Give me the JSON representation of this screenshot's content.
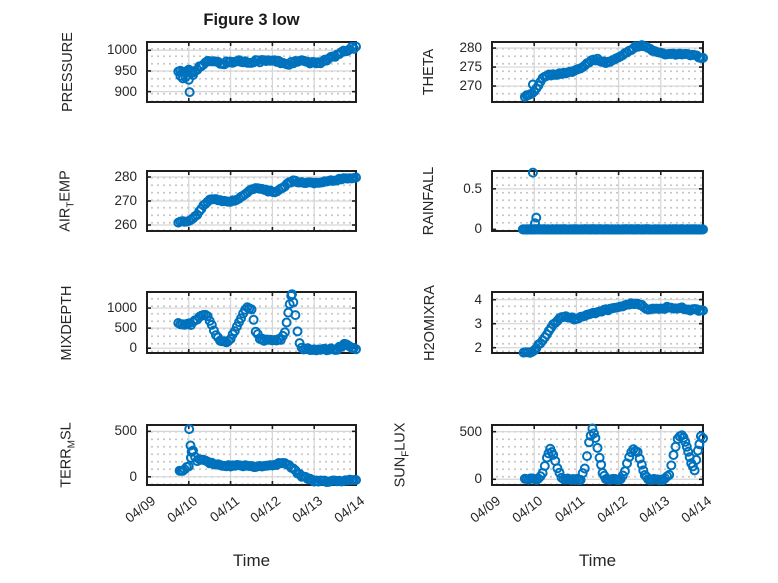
{
  "figure": {
    "title": "Figure 3 low",
    "time_label": "Time"
  },
  "x_axis": {
    "label": "Time",
    "tick_labels": [
      "04/09",
      "04/10",
      "04/11",
      "04/12",
      "04/13",
      "04/14"
    ],
    "range_days": [
      0,
      5
    ]
  },
  "style": {
    "marker_color": "#0072BD",
    "axis_color": "#1f1f1f",
    "grid_color": "#d6d6d6",
    "minor_dot_color": "#c7c7c7",
    "text_color": "#262626",
    "background": "#ffffff"
  },
  "chart_data": [
    {
      "type": "scatter",
      "name": "pressure",
      "ylabel": "PRESSURE",
      "ylabel_parts": [
        [
          "text",
          "PRESSURE"
        ]
      ],
      "ylim": [
        875,
        1020
      ],
      "yticks": [
        {
          "v": 900,
          "label": "900"
        },
        {
          "v": 950,
          "label": "950"
        },
        {
          "v": 1000,
          "label": "1000"
        }
      ],
      "step": 0.045,
      "jitter": 3.5,
      "trend": [
        [
          0.75,
          950
        ],
        [
          0.9,
          945
        ],
        [
          1.0,
          953
        ],
        [
          1.1,
          948
        ],
        [
          1.2,
          956
        ],
        [
          1.35,
          966
        ],
        [
          1.5,
          974
        ],
        [
          1.65,
          971
        ],
        [
          1.8,
          968
        ],
        [
          2.0,
          972
        ],
        [
          2.2,
          974
        ],
        [
          2.4,
          971
        ],
        [
          2.6,
          975
        ],
        [
          2.8,
          974
        ],
        [
          3.0,
          975
        ],
        [
          3.2,
          971
        ],
        [
          3.35,
          967
        ],
        [
          3.5,
          970
        ],
        [
          3.65,
          974
        ],
        [
          3.8,
          972
        ],
        [
          4.0,
          968
        ],
        [
          4.15,
          972
        ],
        [
          4.3,
          978
        ],
        [
          4.5,
          985
        ],
        [
          4.7,
          996
        ],
        [
          4.85,
          1003
        ],
        [
          5.0,
          1009
        ]
      ],
      "outliers": [
        [
          0.8,
          938
        ],
        [
          0.86,
          932
        ],
        [
          0.92,
          935
        ],
        [
          1.0,
          929
        ],
        [
          1.02,
          899
        ],
        [
          1.1,
          940
        ]
      ]
    },
    {
      "type": "scatter",
      "name": "theta",
      "ylabel": "THETA",
      "ylabel_parts": [
        [
          "text",
          "THETA"
        ]
      ],
      "ylim": [
        265.8,
        281.6
      ],
      "yticks": [
        {
          "v": 270,
          "label": "270"
        },
        {
          "v": 275,
          "label": "275"
        },
        {
          "v": 280,
          "label": "280"
        }
      ],
      "step": 0.045,
      "jitter": 0.2,
      "trend": [
        [
          0.78,
          267.3
        ],
        [
          0.9,
          267.7
        ],
        [
          1.0,
          268.4
        ],
        [
          1.1,
          270.0
        ],
        [
          1.2,
          272.0
        ],
        [
          1.3,
          272.8
        ],
        [
          1.45,
          273.0
        ],
        [
          1.6,
          273.2
        ],
        [
          1.75,
          273.5
        ],
        [
          1.9,
          273.8
        ],
        [
          2.05,
          274.5
        ],
        [
          2.2,
          275.5
        ],
        [
          2.35,
          276.8
        ],
        [
          2.5,
          277.0
        ],
        [
          2.6,
          276.5
        ],
        [
          2.7,
          276.2
        ],
        [
          2.8,
          276.5
        ],
        [
          3.0,
          277.5
        ],
        [
          3.2,
          279.0
        ],
        [
          3.4,
          280.3
        ],
        [
          3.55,
          280.8
        ],
        [
          3.7,
          280.0
        ],
        [
          3.85,
          279.1
        ],
        [
          4.0,
          278.6
        ],
        [
          4.2,
          278.3
        ],
        [
          4.4,
          278.5
        ],
        [
          4.6,
          278.3
        ],
        [
          4.8,
          278.0
        ],
        [
          5.0,
          277.4
        ]
      ],
      "outliers": [
        [
          0.97,
          270.4
        ]
      ]
    },
    {
      "type": "scatter",
      "name": "air_temp",
      "ylabel": "AIR_TEMP",
      "ylabel_parts": [
        [
          "text",
          "AIR"
        ],
        [
          "sub",
          "T"
        ],
        [
          "text",
          "EMP"
        ]
      ],
      "ylim": [
        257.5,
        282.5
      ],
      "yticks": [
        {
          "v": 260,
          "label": "260"
        },
        {
          "v": 270,
          "label": "270"
        },
        {
          "v": 280,
          "label": "280"
        }
      ],
      "step": 0.045,
      "jitter": 0.3,
      "trend": [
        [
          0.75,
          261.0
        ],
        [
          0.85,
          261.5
        ],
        [
          0.95,
          261.2
        ],
        [
          1.05,
          262.0
        ],
        [
          1.15,
          263.5
        ],
        [
          1.25,
          265.5
        ],
        [
          1.35,
          268.0
        ],
        [
          1.45,
          270.0
        ],
        [
          1.55,
          271.0
        ],
        [
          1.65,
          270.5
        ],
        [
          1.8,
          270.0
        ],
        [
          1.95,
          269.8
        ],
        [
          2.1,
          270.2
        ],
        [
          2.25,
          271.5
        ],
        [
          2.4,
          273.5
        ],
        [
          2.5,
          275.0
        ],
        [
          2.6,
          275.5
        ],
        [
          2.75,
          275.0
        ],
        [
          2.9,
          274.2
        ],
        [
          3.05,
          273.8
        ],
        [
          3.2,
          275.0
        ],
        [
          3.35,
          277.0
        ],
        [
          3.5,
          278.5
        ],
        [
          3.6,
          278.0
        ],
        [
          3.75,
          277.5
        ],
        [
          3.9,
          277.8
        ],
        [
          4.05,
          277.5
        ],
        [
          4.2,
          278.0
        ],
        [
          4.4,
          278.5
        ],
        [
          4.6,
          279.0
        ],
        [
          4.8,
          279.5
        ],
        [
          5.0,
          279.8
        ]
      ],
      "outliers": []
    },
    {
      "type": "scatter",
      "name": "rainfall",
      "ylabel": "RAINFALL",
      "ylabel_parts": [
        [
          "text",
          "RAINFALL"
        ]
      ],
      "ylim": [
        -0.02,
        0.72
      ],
      "yticks": [
        {
          "v": 0,
          "label": "0"
        },
        {
          "v": 0.5,
          "label": "0.5"
        }
      ],
      "step": 0.016,
      "jitter": 0.002,
      "trend": [
        [
          0.73,
          0
        ],
        [
          5.0,
          0
        ]
      ],
      "outliers": [
        [
          0.97,
          0.7
        ],
        [
          1.05,
          0.145
        ],
        [
          1.02,
          0.075
        ]
      ]
    },
    {
      "type": "scatter",
      "name": "mixdepth",
      "ylabel": "MIXDEPTH",
      "ylabel_parts": [
        [
          "text",
          "MIXDEPTH"
        ]
      ],
      "ylim": [
        -120,
        1400
      ],
      "yticks": [
        {
          "v": 0,
          "label": "0"
        },
        {
          "v": 500,
          "label": "500"
        },
        {
          "v": 1000,
          "label": "1000"
        }
      ],
      "step": 0.045,
      "jitter": 25,
      "trend": [
        [
          0.75,
          630
        ],
        [
          0.9,
          590
        ],
        [
          1.05,
          600
        ],
        [
          1.2,
          720
        ],
        [
          1.35,
          840
        ],
        [
          1.45,
          780
        ],
        [
          1.55,
          560
        ],
        [
          1.65,
          330
        ],
        [
          1.75,
          200
        ],
        [
          1.9,
          170
        ],
        [
          2.0,
          240
        ],
        [
          2.1,
          430
        ],
        [
          2.2,
          640
        ],
        [
          2.3,
          850
        ],
        [
          2.4,
          1030
        ],
        [
          2.5,
          960
        ],
        [
          2.55,
          700
        ],
        [
          2.6,
          430
        ],
        [
          2.7,
          250
        ],
        [
          2.8,
          200
        ],
        [
          2.9,
          190
        ],
        [
          3.0,
          195
        ],
        [
          3.1,
          200
        ],
        [
          3.2,
          210
        ],
        [
          3.3,
          400
        ],
        [
          3.38,
          900
        ],
        [
          3.45,
          1300
        ],
        [
          3.5,
          1150
        ],
        [
          3.55,
          800
        ],
        [
          3.6,
          400
        ],
        [
          3.65,
          150
        ],
        [
          3.7,
          0
        ],
        [
          3.8,
          -25
        ],
        [
          4.0,
          -30
        ],
        [
          4.2,
          -30
        ],
        [
          4.4,
          -30
        ],
        [
          4.55,
          -20
        ],
        [
          4.65,
          40
        ],
        [
          4.72,
          95
        ],
        [
          4.8,
          60
        ],
        [
          4.9,
          -10
        ],
        [
          5.0,
          -25
        ]
      ],
      "outliers": [
        [
          3.47,
          1345
        ]
      ]
    },
    {
      "type": "scatter",
      "name": "h2omixra",
      "ylabel": "H2OMIXRA",
      "ylabel_parts": [
        [
          "text",
          "H2OMIXRA"
        ]
      ],
      "ylim": [
        1.78,
        4.32
      ],
      "yticks": [
        {
          "v": 2,
          "label": "2"
        },
        {
          "v": 3,
          "label": "3"
        },
        {
          "v": 4,
          "label": "4"
        }
      ],
      "step": 0.045,
      "jitter": 0.04,
      "trend": [
        [
          0.75,
          1.82
        ],
        [
          0.85,
          1.8
        ],
        [
          0.95,
          1.86
        ],
        [
          1.05,
          2.0
        ],
        [
          1.15,
          2.2
        ],
        [
          1.25,
          2.45
        ],
        [
          1.35,
          2.7
        ],
        [
          1.45,
          2.95
        ],
        [
          1.55,
          3.15
        ],
        [
          1.65,
          3.3
        ],
        [
          1.75,
          3.32
        ],
        [
          1.85,
          3.25
        ],
        [
          1.95,
          3.2
        ],
        [
          2.05,
          3.22
        ],
        [
          2.15,
          3.3
        ],
        [
          2.25,
          3.35
        ],
        [
          2.35,
          3.4
        ],
        [
          2.5,
          3.5
        ],
        [
          2.65,
          3.55
        ],
        [
          2.8,
          3.6
        ],
        [
          2.95,
          3.65
        ],
        [
          3.1,
          3.7
        ],
        [
          3.25,
          3.8
        ],
        [
          3.4,
          3.85
        ],
        [
          3.5,
          3.8
        ],
        [
          3.6,
          3.7
        ],
        [
          3.7,
          3.55
        ],
        [
          3.8,
          3.6
        ],
        [
          3.9,
          3.65
        ],
        [
          4.0,
          3.6
        ],
        [
          4.1,
          3.65
        ],
        [
          4.2,
          3.7
        ],
        [
          4.3,
          3.65
        ],
        [
          4.4,
          3.6
        ],
        [
          4.5,
          3.65
        ],
        [
          4.6,
          3.6
        ],
        [
          4.7,
          3.55
        ],
        [
          4.8,
          3.6
        ],
        [
          4.9,
          3.55
        ],
        [
          5.0,
          3.55
        ]
      ],
      "outliers": []
    },
    {
      "type": "scatter",
      "name": "terr_msl",
      "ylabel": "TERR_MSL",
      "ylabel_parts": [
        [
          "text",
          "TERR"
        ],
        [
          "sub",
          "M"
        ],
        [
          "text",
          "SL"
        ]
      ],
      "ylim": [
        -90,
        570
      ],
      "yticks": [
        {
          "v": 0,
          "label": "0"
        },
        {
          "v": 500,
          "label": "500"
        }
      ],
      "step": 0.045,
      "jitter": 10,
      "trend": [
        [
          0.78,
          60
        ],
        [
          0.9,
          80
        ],
        [
          1.0,
          120
        ],
        [
          1.05,
          200
        ],
        [
          1.1,
          280
        ],
        [
          1.15,
          220
        ],
        [
          1.2,
          180
        ],
        [
          1.3,
          190
        ],
        [
          1.4,
          170
        ],
        [
          1.5,
          150
        ],
        [
          1.6,
          140
        ],
        [
          1.8,
          130
        ],
        [
          2.0,
          120
        ],
        [
          2.2,
          125
        ],
        [
          2.4,
          120
        ],
        [
          2.6,
          115
        ],
        [
          2.8,
          125
        ],
        [
          3.0,
          130
        ],
        [
          3.1,
          140
        ],
        [
          3.2,
          150
        ],
        [
          3.3,
          145
        ],
        [
          3.4,
          130
        ],
        [
          3.5,
          90
        ],
        [
          3.6,
          40
        ],
        [
          3.7,
          10
        ],
        [
          3.8,
          -10
        ],
        [
          3.9,
          -30
        ],
        [
          4.0,
          -45
        ],
        [
          4.2,
          -50
        ],
        [
          4.4,
          -50
        ],
        [
          4.6,
          -45
        ],
        [
          4.8,
          -40
        ],
        [
          5.0,
          -35
        ]
      ],
      "outliers": [
        [
          1.01,
          525
        ],
        [
          1.04,
          345
        ],
        [
          1.07,
          275
        ]
      ]
    },
    {
      "type": "scatter",
      "name": "sun_flux",
      "ylabel": "SUN_FLUX",
      "ylabel_parts": [
        [
          "text",
          "SUN"
        ],
        [
          "sub",
          "F"
        ],
        [
          "text",
          "LUX"
        ]
      ],
      "ylim": [
        -60,
        570
      ],
      "yticks": [
        {
          "v": 0,
          "label": "0"
        },
        {
          "v": 500,
          "label": "500"
        }
      ],
      "step": 0.045,
      "jitter": 9,
      "trend": [
        [
          0.78,
          0
        ],
        [
          1.1,
          0
        ],
        [
          1.2,
          60
        ],
        [
          1.3,
          230
        ],
        [
          1.38,
          320
        ],
        [
          1.45,
          260
        ],
        [
          1.55,
          120
        ],
        [
          1.65,
          10
        ],
        [
          1.75,
          0
        ],
        [
          2.1,
          0
        ],
        [
          2.2,
          120
        ],
        [
          2.3,
          380
        ],
        [
          2.38,
          540
        ],
        [
          2.45,
          430
        ],
        [
          2.55,
          230
        ],
        [
          2.62,
          60
        ],
        [
          2.7,
          0
        ],
        [
          3.05,
          0
        ],
        [
          3.15,
          80
        ],
        [
          3.25,
          240
        ],
        [
          3.35,
          320
        ],
        [
          3.45,
          280
        ],
        [
          3.55,
          150
        ],
        [
          3.62,
          40
        ],
        [
          3.7,
          0
        ],
        [
          4.1,
          0
        ],
        [
          4.2,
          50
        ],
        [
          4.3,
          250
        ],
        [
          4.4,
          430
        ],
        [
          4.5,
          470
        ],
        [
          4.58,
          400
        ],
        [
          4.65,
          280
        ],
        [
          4.72,
          170
        ],
        [
          4.8,
          90
        ],
        [
          4.88,
          300
        ],
        [
          4.95,
          450
        ],
        [
          5.0,
          430
        ]
      ],
      "outliers": []
    }
  ]
}
